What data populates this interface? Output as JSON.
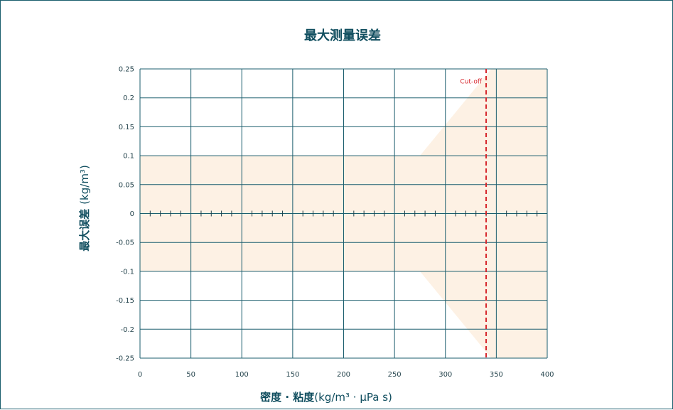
{
  "chart_data": {
    "type": "line",
    "title": "最大测量误差",
    "xlabel_bold": "密度 · 粘度",
    "xlabel_unit": "(kg/m³ · µPa s)",
    "ylabel_bold": "最大误差",
    "ylabel_unit": "(kg/m³)",
    "xlim": [
      0,
      400
    ],
    "ylim": [
      -0.25,
      0.25
    ],
    "x_ticks": [
      0,
      50,
      100,
      150,
      200,
      250,
      300,
      350,
      400
    ],
    "y_ticks": [
      0.25,
      0.2,
      0.15,
      0.1,
      0.05,
      0,
      -0.05,
      -0.1,
      -0.15,
      -0.2,
      -0.25
    ],
    "x_tick_labels": [
      "0",
      "50",
      "100",
      "150",
      "200",
      "250",
      "300",
      "350",
      "400"
    ],
    "y_tick_labels": [
      "0.25",
      "0.2",
      "0.15",
      "0.1",
      "0.05",
      "0",
      "-0.05",
      "-0.1",
      "-0.15",
      "-0.2",
      "-0.25"
    ],
    "grid": true,
    "x_minor_step": 10,
    "error_band_upper": [
      [
        0,
        0.1
      ],
      [
        275,
        0.1
      ],
      [
        345,
        0.25
      ],
      [
        400,
        0.25
      ]
    ],
    "error_band_lower": [
      [
        0,
        -0.1
      ],
      [
        275,
        -0.1
      ],
      [
        345,
        -0.25
      ],
      [
        400,
        -0.25
      ]
    ],
    "cutoff": {
      "x": 340,
      "label": "Cut-off"
    },
    "colors": {
      "band": "#fdf1e4",
      "grid": "#1b5e6e",
      "title": "#0f4d5e",
      "cutoff": "#d7262c"
    }
  }
}
